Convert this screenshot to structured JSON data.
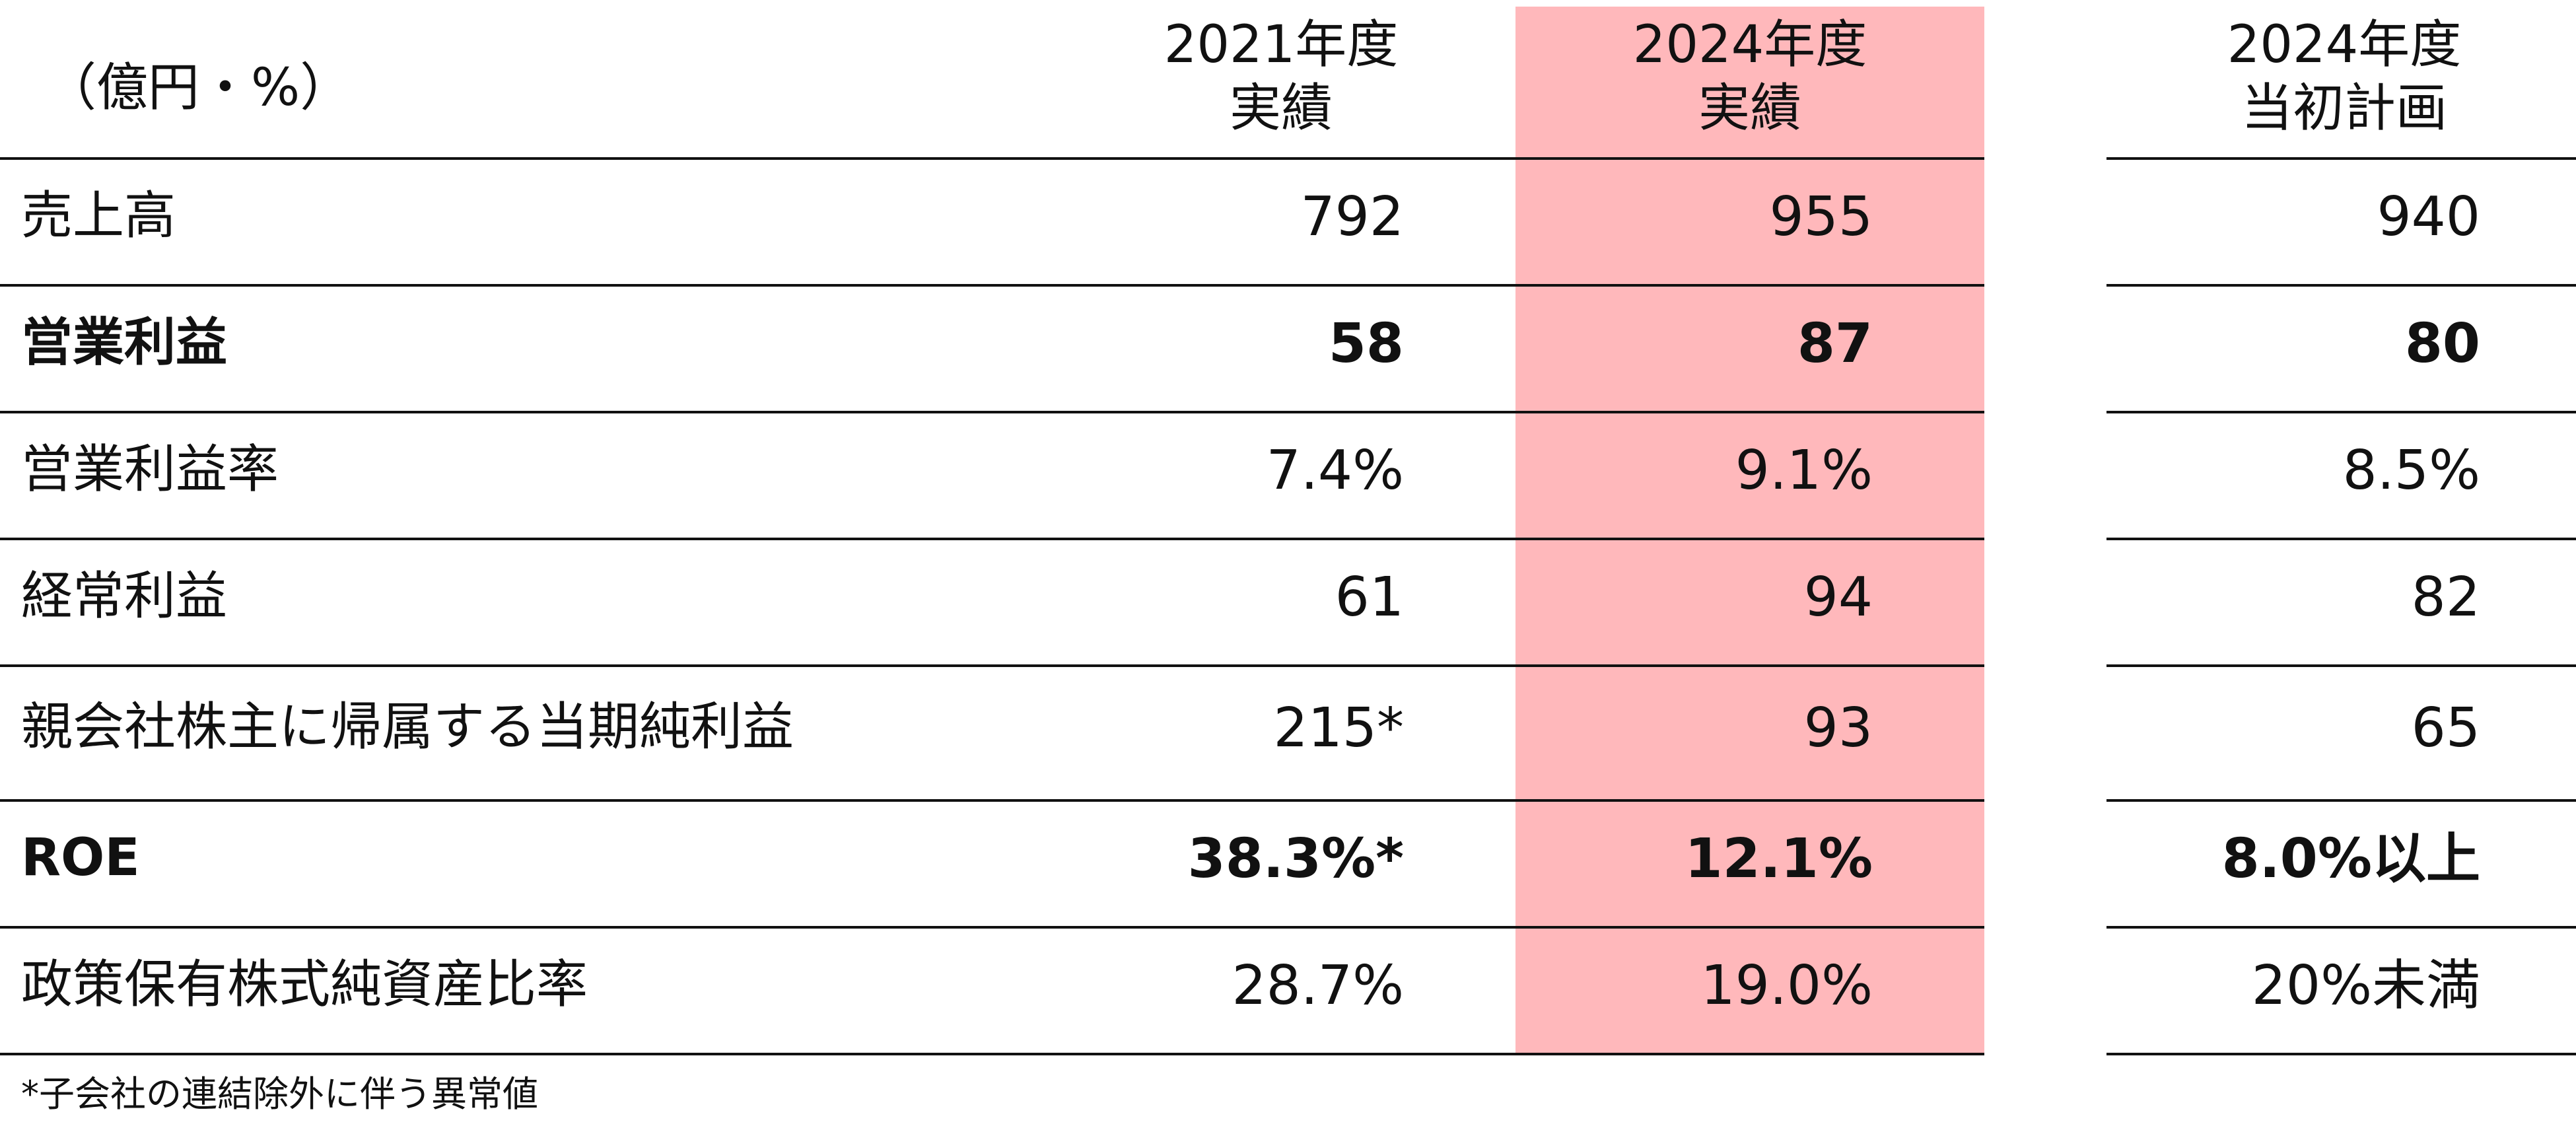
{
  "table": {
    "unit_label": "（億円・%）",
    "columns": [
      {
        "line1": "2021年度",
        "line2": "実績"
      },
      {
        "line1": "2024年度",
        "line2": "実績"
      },
      {
        "line1": "2024年度",
        "line2": "当初計画"
      }
    ],
    "highlight_color": "#ffb8bb",
    "rows": [
      {
        "label": "売上高",
        "bold": false,
        "values": [
          "792",
          "955",
          "940"
        ]
      },
      {
        "label": "営業利益",
        "bold": true,
        "values": [
          "58",
          "87",
          "80"
        ]
      },
      {
        "label": "営業利益率",
        "bold": false,
        "values": [
          "7.4%",
          "9.1%",
          "8.5%"
        ]
      },
      {
        "label": "経常利益",
        "bold": false,
        "values": [
          "61",
          "94",
          "82"
        ]
      },
      {
        "label": "親会社株主に帰属する当期純利益",
        "bold": false,
        "values": [
          "215*",
          "93",
          "65"
        ]
      },
      {
        "label": "ROE",
        "bold": true,
        "values": [
          "38.3%*",
          "12.1%",
          "8.0%以上"
        ]
      },
      {
        "label": "政策保有株式純資産比率",
        "bold": false,
        "values": [
          "28.7%",
          "19.0%",
          "20%未満"
        ]
      }
    ],
    "footnote": "*子会社の連結除外に伴う異常値"
  }
}
